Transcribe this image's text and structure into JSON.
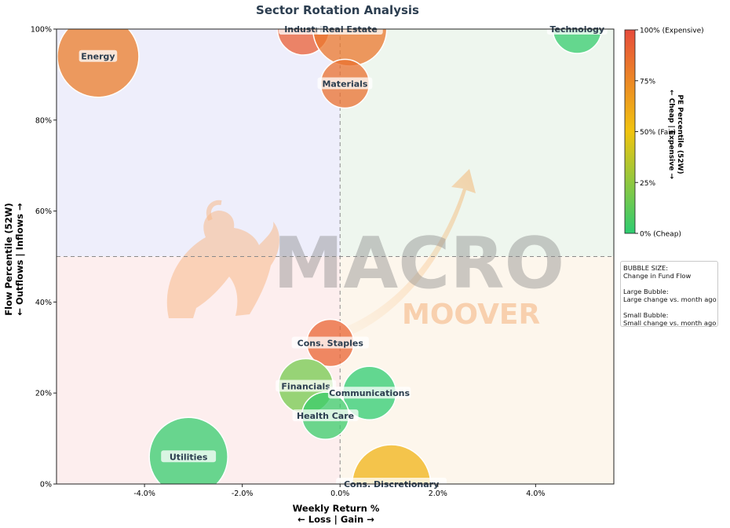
{
  "chart_data": {
    "type": "scatter",
    "title": "Sector Rotation Analysis",
    "xlabel_line1": "Weekly Return %",
    "xlabel_line2": "← Loss | Gain →",
    "ylabel_line1": "Flow Percentile (52W)",
    "ylabel_line2": "← Outflows | Inflows →",
    "xlim": [
      -5.8,
      5.6
    ],
    "ylim": [
      0,
      100
    ],
    "x_ticks": [
      -4,
      -2,
      0,
      2,
      4
    ],
    "x_tick_labels": [
      "-4.0%",
      "-2.0%",
      "0.0%",
      "2.0%",
      "4.0%"
    ],
    "y_ticks": [
      0,
      20,
      40,
      60,
      80,
      100
    ],
    "y_tick_labels": [
      "0%",
      "20%",
      "40%",
      "60%",
      "80%",
      "100%"
    ],
    "quadrant_lines": {
      "x": 0,
      "y": 50
    },
    "quadrant_colors": {
      "top_left": "#eeeefb",
      "top_right": "#eef6ee",
      "bottom_left": "#fdeeee",
      "bottom_right": "#fdf6ec"
    },
    "colorbar": {
      "title_line1": "PE Percentile (52W)",
      "title_line2": "← Cheap | Expensive →",
      "range": [
        0,
        100
      ],
      "ticks": [
        0,
        25,
        50,
        75,
        100
      ],
      "tick_labels": [
        "0% (Cheap)",
        "25%",
        "50% (Fair)",
        "75%",
        "100% (Expensive)"
      ],
      "colors": [
        "#2ecc71",
        "#f1c40f",
        "#e74c3c"
      ]
    },
    "bubble_legend": [
      "BUBBLE SIZE:",
      "Change in Fund Flow",
      "",
      "Large Bubble:",
      "Large change vs. month ago",
      "",
      "Small Bubble:",
      "Small change vs. month ago"
    ],
    "points": [
      {
        "label": "Energy",
        "x": -4.95,
        "y": 94,
        "size": 52,
        "pe": 80
      },
      {
        "label": "Industri",
        "x": -0.75,
        "y": 100,
        "size": 33,
        "pe": 92
      },
      {
        "label": "Real Estate",
        "x": 0.2,
        "y": 100,
        "size": 47,
        "pe": 82
      },
      {
        "label": "Technology",
        "x": 4.85,
        "y": 100,
        "size": 31,
        "pe": 2
      },
      {
        "label": "Materials",
        "x": 0.1,
        "y": 88,
        "size": 31,
        "pe": 85
      },
      {
        "label": "Cons. Staples",
        "x": -0.2,
        "y": 31,
        "size": 30,
        "pe": 90
      },
      {
        "label": "Financials",
        "x": -0.7,
        "y": 21.5,
        "size": 35,
        "pe": 18
      },
      {
        "label": "Communications",
        "x": 0.6,
        "y": 20,
        "size": 34,
        "pe": 0
      },
      {
        "label": "Health Care",
        "x": -0.3,
        "y": 15,
        "size": 30,
        "pe": 3
      },
      {
        "label": "Utilities",
        "x": -3.1,
        "y": 6,
        "size": 50,
        "pe": 2
      },
      {
        "label": "Cons. Discretionary",
        "x": 1.05,
        "y": 0,
        "size": 50,
        "pe": 57
      }
    ],
    "watermark": [
      "MACRO",
      "MOOVER"
    ]
  }
}
